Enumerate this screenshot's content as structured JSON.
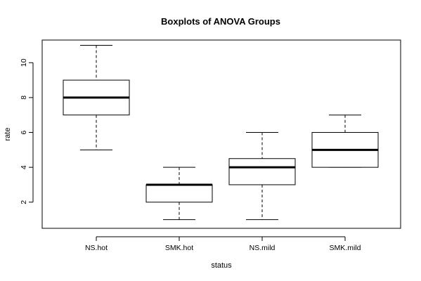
{
  "chart_data": {
    "type": "boxplot",
    "title": "Boxplots of ANOVA Groups",
    "xlabel": "status",
    "ylabel": "rate",
    "ylim": [
      0.5,
      11.3
    ],
    "yticks": [
      "2",
      "4",
      "6",
      "8",
      "10"
    ],
    "categories": [
      "NS.hot",
      "SMK.hot",
      "NS.mild",
      "SMK.mild"
    ],
    "boxes": [
      {
        "min": 5,
        "q1": 7,
        "median": 8,
        "q3": 9,
        "max": 11
      },
      {
        "min": 1,
        "q1": 2,
        "median": 3,
        "q3": 3,
        "max": 4
      },
      {
        "min": 1,
        "q1": 3,
        "median": 4,
        "q3": 4.5,
        "max": 6
      },
      {
        "min": 4,
        "q1": 4,
        "median": 5,
        "q3": 6,
        "max": 7
      }
    ],
    "grid": false,
    "legend": "none"
  }
}
